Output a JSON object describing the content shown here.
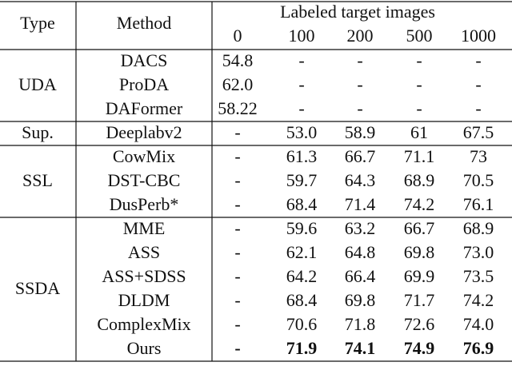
{
  "header": {
    "type": "Type",
    "method": "Method",
    "group": "Labeled target images",
    "columns": [
      "0",
      "100",
      "200",
      "500",
      "1000"
    ]
  },
  "groups": [
    {
      "type": "UDA",
      "rows": [
        {
          "method": "DACS",
          "values": [
            "54.8",
            "-",
            "-",
            "-",
            "-"
          ]
        },
        {
          "method": "ProDA",
          "values": [
            "62.0",
            "-",
            "-",
            "-",
            "-"
          ]
        },
        {
          "method": "DAFormer",
          "values": [
            "58.22",
            "-",
            "-",
            "-",
            "-"
          ]
        }
      ]
    },
    {
      "type": "Sup.",
      "rows": [
        {
          "method": "Deeplabv2",
          "values": [
            "-",
            "53.0",
            "58.9",
            "61",
            "67.5"
          ]
        }
      ]
    },
    {
      "type": "SSL",
      "rows": [
        {
          "method": "CowMix",
          "values": [
            "-",
            "61.3",
            "66.7",
            "71.1",
            "73"
          ]
        },
        {
          "method": "DST-CBC",
          "values": [
            "-",
            "59.7",
            "64.3",
            "68.9",
            "70.5"
          ]
        },
        {
          "method": "DusPerb*",
          "values": [
            "-",
            "68.4",
            "71.4",
            "74.2",
            "76.1"
          ]
        }
      ]
    },
    {
      "type": "SSDA",
      "rows": [
        {
          "method": "MME",
          "values": [
            "-",
            "59.6",
            "63.2",
            "66.7",
            "68.9"
          ]
        },
        {
          "method": "ASS",
          "values": [
            "-",
            "62.1",
            "64.8",
            "69.8",
            "73.0"
          ]
        },
        {
          "method": "ASS+SDSS",
          "values": [
            "-",
            "64.2",
            "66.4",
            "69.9",
            "73.5"
          ]
        },
        {
          "method": "DLDM",
          "values": [
            "-",
            "68.4",
            "69.8",
            "71.7",
            "74.2"
          ]
        },
        {
          "method": "ComplexMix",
          "values": [
            "-",
            "70.6",
            "71.8",
            "72.6",
            "74.0"
          ]
        },
        {
          "method": "Ours",
          "values": [
            "-",
            "71.9",
            "74.1",
            "74.9",
            "76.9"
          ],
          "bold": true
        }
      ]
    }
  ]
}
